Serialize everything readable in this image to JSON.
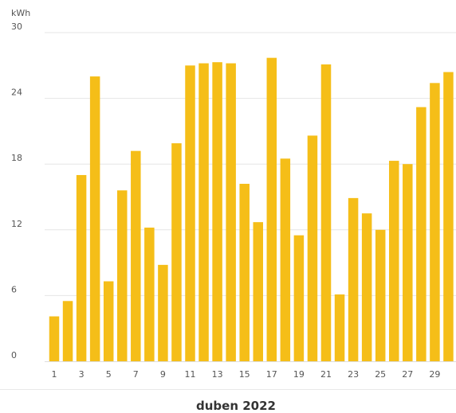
{
  "chart_data": {
    "type": "bar",
    "title": "duben 2022",
    "ylabel": "kWh",
    "xlabel": "",
    "ylim": [
      0,
      30
    ],
    "yticks": [
      0,
      6,
      12,
      18,
      24,
      30
    ],
    "categories": [
      "1",
      "2",
      "3",
      "4",
      "5",
      "6",
      "7",
      "8",
      "9",
      "10",
      "11",
      "12",
      "13",
      "14",
      "15",
      "16",
      "17",
      "18",
      "19",
      "20",
      "21",
      "22",
      "23",
      "24",
      "25",
      "26",
      "27",
      "28",
      "29",
      "30"
    ],
    "xtick_labels": [
      "1",
      "3",
      "5",
      "7",
      "9",
      "11",
      "13",
      "15",
      "17",
      "19",
      "21",
      "23",
      "25",
      "27",
      "29"
    ],
    "values": [
      4.1,
      5.5,
      17.0,
      26.0,
      7.3,
      15.6,
      19.2,
      12.2,
      8.8,
      19.9,
      27.0,
      27.2,
      27.3,
      27.2,
      16.2,
      12.7,
      27.7,
      18.5,
      11.5,
      20.6,
      27.1,
      6.1,
      14.9,
      13.5,
      12.0,
      18.3,
      18.0,
      23.2,
      25.4,
      26.4
    ],
    "grid": true,
    "bar_color": "#F5BE18"
  }
}
